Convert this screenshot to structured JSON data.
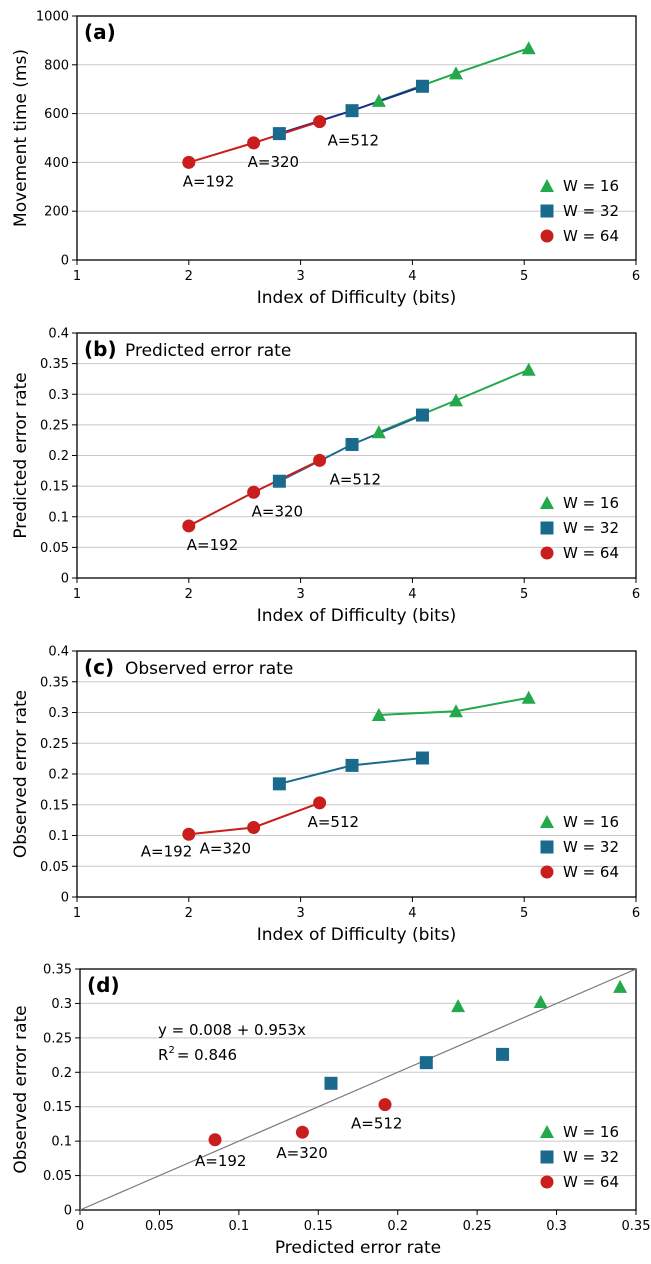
{
  "figure": {
    "legend": [
      "W = 16",
      "W = 32",
      "W = 64"
    ],
    "series_colors": {
      "W16": "#23a84b",
      "W32": "#1a6a8e",
      "W64": "#c81e1e",
      "W32_line_a": "#1a2a8e"
    }
  },
  "chart_data": [
    {
      "panel": "(a)",
      "title": "",
      "type": "line",
      "xlabel": "Index of Difficulty (bits)",
      "ylabel": "Movement time (ms)",
      "xlim": [
        1,
        6
      ],
      "ylim": [
        0,
        1000
      ],
      "x_ticks": [
        "1",
        "2",
        "3",
        "4",
        "5",
        "6"
      ],
      "y_ticks": [
        "0",
        "200",
        "400",
        "600",
        "800",
        "1000"
      ],
      "grid": "horizontal",
      "legend_position": "bottom-right",
      "series": [
        {
          "name": "W = 16",
          "marker": "triangle",
          "x": [
            3.7,
            4.39,
            5.04
          ],
          "y": [
            652,
            765,
            868
          ]
        },
        {
          "name": "W = 32",
          "marker": "square",
          "x": [
            2.81,
            3.46,
            4.09
          ],
          "y": [
            518,
            612,
            712
          ]
        },
        {
          "name": "W = 64",
          "marker": "circle",
          "x": [
            2.0,
            2.58,
            3.17
          ],
          "y": [
            400,
            480,
            567
          ]
        }
      ],
      "annotations": [
        {
          "text": "A=192",
          "x": 2.0,
          "y": 400
        },
        {
          "text": "A=320",
          "x": 2.58,
          "y": 480
        },
        {
          "text": "A=512",
          "x": 3.17,
          "y": 567
        }
      ]
    },
    {
      "panel": "(b)",
      "title": "Predicted error rate",
      "type": "line",
      "xlabel": "Index of Difficulty (bits)",
      "ylabel": "Predicted error rate",
      "xlim": [
        1,
        6
      ],
      "ylim": [
        0,
        0.4
      ],
      "x_ticks": [
        "1",
        "2",
        "3",
        "4",
        "5",
        "6"
      ],
      "y_ticks": [
        "0",
        "0.05",
        "0.1",
        "0.15",
        "0.2",
        "0.25",
        "0.3",
        "0.35",
        "0.4"
      ],
      "grid": "horizontal",
      "legend_position": "bottom-right",
      "series": [
        {
          "name": "W = 16",
          "marker": "triangle",
          "x": [
            3.7,
            4.39,
            5.04
          ],
          "y": [
            0.238,
            0.29,
            0.34
          ]
        },
        {
          "name": "W = 32",
          "marker": "square",
          "x": [
            2.81,
            3.46,
            4.09
          ],
          "y": [
            0.158,
            0.218,
            0.266
          ]
        },
        {
          "name": "W = 64",
          "marker": "circle",
          "x": [
            2.0,
            2.58,
            3.17
          ],
          "y": [
            0.085,
            0.14,
            0.192
          ]
        }
      ],
      "annotations": [
        {
          "text": "A=192",
          "x": 2.0,
          "y": 0.085
        },
        {
          "text": "A=320",
          "x": 2.58,
          "y": 0.14
        },
        {
          "text": "A=512",
          "x": 3.17,
          "y": 0.192
        }
      ]
    },
    {
      "panel": "(c)",
      "title": "Observed error rate",
      "type": "line",
      "xlabel": "Index of Difficulty (bits)",
      "ylabel": "Observed error rate",
      "xlim": [
        1,
        6
      ],
      "ylim": [
        0,
        0.4
      ],
      "x_ticks": [
        "1",
        "2",
        "3",
        "4",
        "5",
        "6"
      ],
      "y_ticks": [
        "0",
        "0.05",
        "0.1",
        "0.15",
        "0.2",
        "0.25",
        "0.3",
        "0.35",
        "0.4"
      ],
      "grid": "horizontal",
      "legend_position": "bottom-right",
      "series": [
        {
          "name": "W = 16",
          "marker": "triangle",
          "x": [
            3.7,
            4.39,
            5.04
          ],
          "y": [
            0.296,
            0.302,
            0.324
          ]
        },
        {
          "name": "W = 32",
          "marker": "square",
          "x": [
            2.81,
            3.46,
            4.09
          ],
          "y": [
            0.184,
            0.214,
            0.226
          ]
        },
        {
          "name": "W = 64",
          "marker": "circle",
          "x": [
            2.0,
            2.58,
            3.17
          ],
          "y": [
            0.102,
            0.113,
            0.153
          ]
        }
      ],
      "annotations": [
        {
          "text": "A=192",
          "x": 2.0,
          "y": 0.102
        },
        {
          "text": "A=320",
          "x": 2.58,
          "y": 0.113
        },
        {
          "text": "A=512",
          "x": 3.17,
          "y": 0.153
        }
      ]
    },
    {
      "panel": "(d)",
      "title": "",
      "type": "scatter",
      "xlabel": "Predicted error rate",
      "ylabel": "Observed error rate",
      "xlim": [
        0,
        0.35
      ],
      "ylim": [
        0,
        0.35
      ],
      "x_ticks": [
        "0",
        "0.05",
        "0.1",
        "0.15",
        "0.2",
        "0.25",
        "0.3",
        "0.35"
      ],
      "y_ticks": [
        "0",
        "0.05",
        "0.1",
        "0.15",
        "0.2",
        "0.25",
        "0.3",
        "0.35"
      ],
      "grid": "horizontal",
      "legend_position": "bottom-right",
      "equation": "y = 0.008 + 0.953x",
      "r2_label": "R",
      "r2_sup": "2",
      "r2_value": "= 0.846",
      "reference_line": {
        "from": [
          0,
          0
        ],
        "to": [
          0.35,
          0.35
        ]
      },
      "series": [
        {
          "name": "W = 16",
          "marker": "triangle",
          "x": [
            0.238,
            0.29,
            0.34
          ],
          "y": [
            0.296,
            0.302,
            0.324
          ]
        },
        {
          "name": "W = 32",
          "marker": "square",
          "x": [
            0.158,
            0.218,
            0.266
          ],
          "y": [
            0.184,
            0.214,
            0.226
          ]
        },
        {
          "name": "W = 64",
          "marker": "circle",
          "x": [
            0.085,
            0.14,
            0.192
          ],
          "y": [
            0.102,
            0.113,
            0.153
          ]
        }
      ],
      "annotations": [
        {
          "text": "A=192",
          "x": 0.085,
          "y": 0.102
        },
        {
          "text": "A=320",
          "x": 0.14,
          "y": 0.113
        },
        {
          "text": "A=512",
          "x": 0.192,
          "y": 0.153
        }
      ]
    }
  ]
}
